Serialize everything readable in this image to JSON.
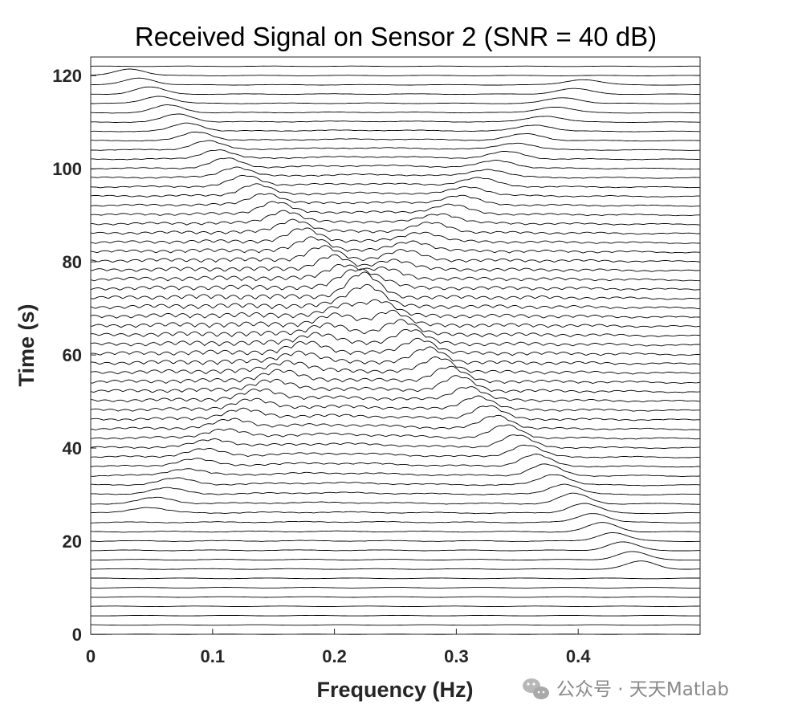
{
  "chart_data": {
    "type": "line",
    "subtype": "waterfall",
    "title": "Received Signal on Sensor 2 (SNR = 40 dB)",
    "xlabel": "Frequency (Hz)",
    "ylabel": "Time (s)",
    "xlim": [
      0,
      0.5
    ],
    "ylim": [
      0,
      124
    ],
    "xticks": [
      0,
      0.1,
      0.2,
      0.3,
      0.4
    ],
    "xtick_labels": [
      "0",
      "0.1",
      "0.2",
      "0.3",
      "0.4"
    ],
    "yticks": [
      0,
      20,
      40,
      60,
      80,
      100,
      120
    ],
    "ytick_labels": [
      "0",
      "20",
      "40",
      "60",
      "80",
      "100",
      "120"
    ],
    "trace_spacing_s": 2,
    "trace_count": 62,
    "line_color": "#000000",
    "grid": false,
    "legend": "none",
    "ridges": [
      {
        "name": "descending chirp",
        "t_start": 118,
        "f_start": 0.04,
        "t_end": 17,
        "f_end": 0.44
      },
      {
        "name": "ascending chirp",
        "t_start": 27,
        "f_start": 0.05,
        "t_end": 117,
        "f_end": 0.4
      },
      {
        "name": "lower arc",
        "t_peak": 42,
        "f_peak": 0.2
      },
      {
        "name": "upper arc",
        "t_peak": 96,
        "f_peak": 0.23
      }
    ]
  },
  "watermark": {
    "text": "公众号 · 天天Matlab",
    "icon": "wechat-icon",
    "color": "#8a8a8a"
  }
}
